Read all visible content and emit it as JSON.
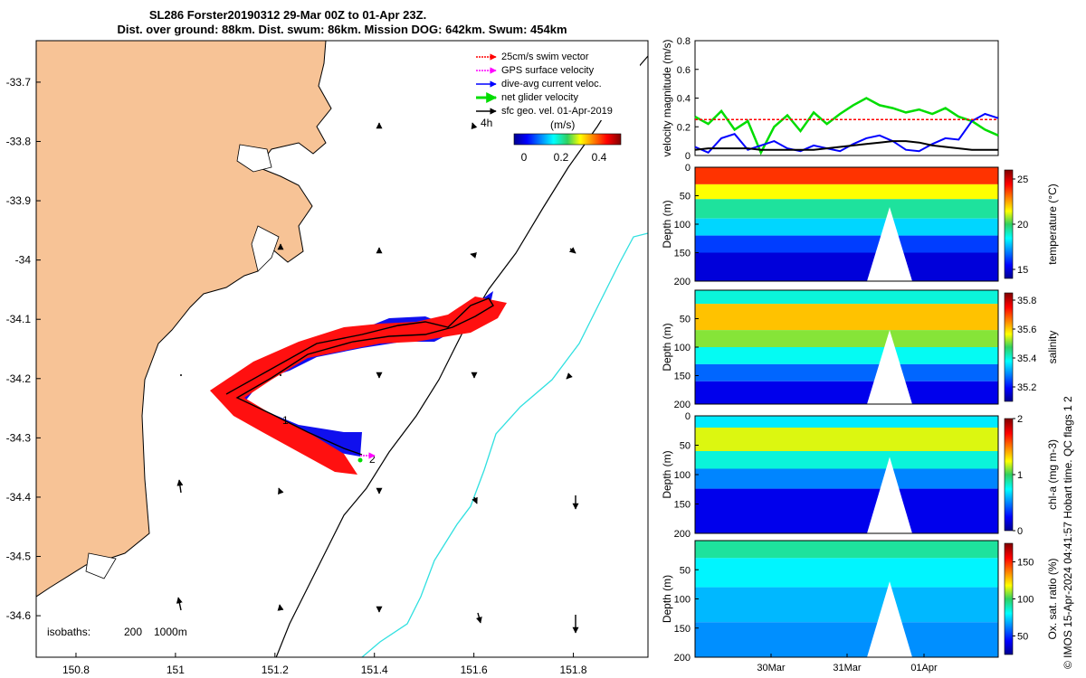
{
  "title": {
    "line1": "SL286 Forster20190312 29-Mar 00Z to 01-Apr 23Z.",
    "line2": "Dist. over ground: 88km. Dist. swum: 86km. Mission DOG: 642km. Swum: 454km"
  },
  "credit": "© IMOS 15-Apr-2024 04:41:57 Hobart time. QC flags 1  2",
  "colors": {
    "land": "#f7c396",
    "swim": "#ff0000",
    "gps": "#ff00ff",
    "current": "#0000ff",
    "net": "#00dd00",
    "sfc": "#000000",
    "isobath200": "#000000",
    "isobath1000": "#30e0e0",
    "red_dashed_line": "#ff0000"
  },
  "map": {
    "type": "map",
    "xticks": [
      "150.8",
      "151",
      "151.2",
      "151.4",
      "151.6",
      "151.8"
    ],
    "yticks": [
      "-33.7",
      "-33.8",
      "-33.9",
      "-34",
      "-34.1",
      "-34.2",
      "-34.3",
      "-34.4",
      "-34.5",
      "-34.6"
    ],
    "xlim": [
      150.72,
      151.95
    ],
    "ylim": [
      -34.67,
      -33.63
    ],
    "legend": [
      {
        "label": "25cm/s swim vector",
        "color": "#ff0000",
        "style": "dotted-arrow"
      },
      {
        "label": "GPS surface velocity",
        "color": "#ff00ff",
        "style": "dotted-arrow"
      },
      {
        "label": "dive-avg current veloc.",
        "color": "#0000ff",
        "style": "arrow"
      },
      {
        "label": "net glider velocity",
        "color": "#00dd00",
        "style": "thick-arrow"
      },
      {
        "label": "sfc geo. vel. 01-Apr-2019",
        "color": "#000000",
        "style": "arrow"
      }
    ],
    "scale_label": "4h",
    "colorbar_label": "(m/s)",
    "colorbar_ticks": [
      "0",
      "0.2",
      "0.4"
    ],
    "isobaths_label": "isobaths:",
    "isobaths_values": [
      "200",
      "1000m"
    ],
    "waypoint_labels": [
      "1",
      "2"
    ]
  },
  "chart_data": [
    {
      "type": "line",
      "ylabel": "velocity magnitude (m/s)",
      "ylim": [
        0,
        0.8
      ],
      "yticks": [
        "0",
        "0.2",
        "0.4",
        "0.6",
        "0.8"
      ],
      "grid": false,
      "series": [
        {
          "color": "#00dd00",
          "values": [
            0.27,
            0.22,
            0.31,
            0.18,
            0.24,
            0.02,
            0.2,
            0.28,
            0.17,
            0.3,
            0.22,
            0.29,
            0.35,
            0.4,
            0.35,
            0.33,
            0.3,
            0.32,
            0.29,
            0.33,
            0.27,
            0.24,
            0.18,
            0.14
          ]
        },
        {
          "color": "#0000ff",
          "values": [
            0.06,
            0.02,
            0.12,
            0.15,
            0.04,
            0.07,
            0.1,
            0.05,
            0.03,
            0.07,
            0.05,
            0.03,
            0.08,
            0.12,
            0.14,
            0.1,
            0.04,
            0.03,
            0.08,
            0.12,
            0.11,
            0.24,
            0.29,
            0.26
          ]
        },
        {
          "color": "#000000",
          "values": [
            0.04,
            0.05,
            0.05,
            0.05,
            0.05,
            0.04,
            0.04,
            0.04,
            0.04,
            0.04,
            0.05,
            0.06,
            0.07,
            0.08,
            0.09,
            0.1,
            0.1,
            0.09,
            0.07,
            0.06,
            0.05,
            0.04,
            0.04,
            0.04
          ]
        },
        {
          "color": "#ff0000",
          "values": [
            0.25,
            0.25,
            0.25,
            0.25,
            0.25,
            0.25,
            0.25,
            0.25,
            0.25,
            0.25,
            0.25,
            0.25,
            0.25,
            0.25,
            0.25,
            0.25,
            0.25,
            0.25,
            0.25,
            0.25,
            0.25,
            0.25,
            0.25,
            0.25
          ]
        }
      ]
    },
    {
      "type": "heatmap",
      "ylabel": "Depth (m)",
      "clabel": "temperature (°C)",
      "ylim": [
        0,
        200
      ],
      "yticks": [
        "0",
        "50",
        "100",
        "150",
        "200"
      ],
      "cticks": [
        "15",
        "20",
        "25"
      ],
      "clim": [
        14,
        26
      ]
    },
    {
      "type": "heatmap",
      "ylabel": "Depth (m)",
      "clabel": "salinity",
      "ylim": [
        0,
        200
      ],
      "yticks": [
        "50",
        "100",
        "150",
        "200"
      ],
      "cticks": [
        "35.2",
        "35.4",
        "35.6",
        "35.8"
      ],
      "clim": [
        35.1,
        35.85
      ]
    },
    {
      "type": "heatmap",
      "ylabel": "Depth (m)",
      "clabel": "chl-a (mg m-3)",
      "ylim": [
        0,
        200
      ],
      "yticks": [
        "0",
        "50",
        "100",
        "150",
        "200"
      ],
      "cticks": [
        "0",
        "1",
        "2"
      ],
      "clim": [
        0,
        2
      ]
    },
    {
      "type": "heatmap",
      "ylabel": "Depth (m)",
      "clabel": "Ox. sat. ratio (%)",
      "ylim": [
        0,
        200
      ],
      "yticks": [
        "50",
        "100",
        "150",
        "200"
      ],
      "cticks": [
        "50",
        "100",
        "150"
      ],
      "clim": [
        25,
        175
      ],
      "xticks": [
        "30Mar",
        "31Mar",
        "01Apr"
      ]
    }
  ]
}
